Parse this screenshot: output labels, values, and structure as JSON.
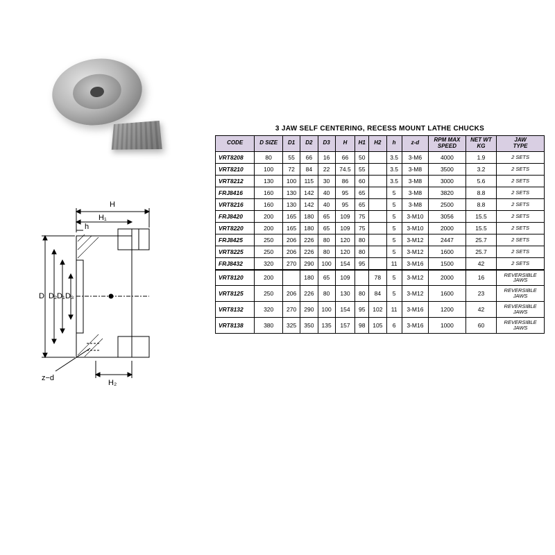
{
  "title": "3 JAW SELF CENTERING, RECESS MOUNT LATHE CHUCKS",
  "colors": {
    "header_bg": "#d9cfe3",
    "border": "#000000",
    "page_bg": "#ffffff"
  },
  "diagram_labels": {
    "H": "H",
    "H1": "H₁",
    "h": "h",
    "D": "D",
    "D1": "D₁",
    "D2": "D₂",
    "D3": "D₃",
    "zd": "z−d",
    "H2": "H₂"
  },
  "table": {
    "columns": [
      "CODE",
      "D SIZE",
      "D1",
      "D2",
      "D3",
      "H",
      "H1",
      "H2",
      "h",
      "z-d",
      "RPM MAX SPEED",
      "NET WT KG",
      "JAW TYPE"
    ],
    "rows": [
      {
        "code": "VRT8208",
        "dsize": "80",
        "d1": "55",
        "d2": "66",
        "d3": "16",
        "H": "66",
        "H1": "50",
        "H2": "",
        "h": "3.5",
        "zd": "3-M6",
        "rpm": "4000",
        "wt": "1.9",
        "jaw": "2 SETS",
        "sep": false
      },
      {
        "code": "VRT8210",
        "dsize": "100",
        "d1": "72",
        "d2": "84",
        "d3": "22",
        "H": "74.5",
        "H1": "55",
        "H2": "",
        "h": "3.5",
        "zd": "3-M8",
        "rpm": "3500",
        "wt": "3.2",
        "jaw": "2 SETS",
        "sep": false
      },
      {
        "code": "VRT8212",
        "dsize": "130",
        "d1": "100",
        "d2": "115",
        "d3": "30",
        "H": "86",
        "H1": "60",
        "H2": "",
        "h": "3.5",
        "zd": "3-M8",
        "rpm": "3000",
        "wt": "5.6",
        "jaw": "2 SETS",
        "sep": false
      },
      {
        "code": "FRJ8416",
        "dsize": "160",
        "d1": "130",
        "d2": "142",
        "d3": "40",
        "H": "95",
        "H1": "65",
        "H2": "",
        "h": "5",
        "zd": "3-M8",
        "rpm": "3820",
        "wt": "8.8",
        "jaw": "2 SETS",
        "sep": false
      },
      {
        "code": "VRT8216",
        "dsize": "160",
        "d1": "130",
        "d2": "142",
        "d3": "40",
        "H": "95",
        "H1": "65",
        "H2": "",
        "h": "5",
        "zd": "3-M8",
        "rpm": "2500",
        "wt": "8.8",
        "jaw": "2 SETS",
        "sep": false
      },
      {
        "code": "FRJ8420",
        "dsize": "200",
        "d1": "165",
        "d2": "180",
        "d3": "65",
        "H": "109",
        "H1": "75",
        "H2": "",
        "h": "5",
        "zd": "3-M10",
        "rpm": "3056",
        "wt": "15.5",
        "jaw": "2 SETS",
        "sep": false
      },
      {
        "code": "VRT8220",
        "dsize": "200",
        "d1": "165",
        "d2": "180",
        "d3": "65",
        "H": "109",
        "H1": "75",
        "H2": "",
        "h": "5",
        "zd": "3-M10",
        "rpm": "2000",
        "wt": "15.5",
        "jaw": "2 SETS",
        "sep": false
      },
      {
        "code": "FRJ8425",
        "dsize": "250",
        "d1": "206",
        "d2": "226",
        "d3": "80",
        "H": "120",
        "H1": "80",
        "H2": "",
        "h": "5",
        "zd": "3-M12",
        "rpm": "2447",
        "wt": "25.7",
        "jaw": "2 SETS",
        "sep": false
      },
      {
        "code": "VRT8225",
        "dsize": "250",
        "d1": "206",
        "d2": "226",
        "d3": "80",
        "H": "120",
        "H1": "80",
        "H2": "",
        "h": "5",
        "zd": "3-M12",
        "rpm": "1600",
        "wt": "25.7",
        "jaw": "2 SETS",
        "sep": false
      },
      {
        "code": "FRJ8432",
        "dsize": "320",
        "d1": "270",
        "d2": "290",
        "d3": "100",
        "H": "154",
        "H1": "95",
        "H2": "",
        "h": "11",
        "zd": "3-M16",
        "rpm": "1500",
        "wt": "42",
        "jaw": "2 SETS",
        "sep": false
      },
      {
        "code": "VRT8120",
        "dsize": "200",
        "d1": "",
        "d2": "180",
        "d3": "65",
        "H": "109",
        "H1": "",
        "H2": "78",
        "h": "5",
        "zd": "3-M12",
        "rpm": "2000",
        "wt": "16",
        "jaw": "REVERSIBLE JAWS",
        "sep": true
      },
      {
        "code": "VRT8125",
        "dsize": "250",
        "d1": "206",
        "d2": "226",
        "d3": "80",
        "H": "130",
        "H1": "80",
        "H2": "84",
        "h": "5",
        "zd": "3-M12",
        "rpm": "1600",
        "wt": "23",
        "jaw": "REVERSIBLE JAWS",
        "sep": false
      },
      {
        "code": "VRT8132",
        "dsize": "320",
        "d1": "270",
        "d2": "290",
        "d3": "100",
        "H": "154",
        "H1": "95",
        "H2": "102",
        "h": "11",
        "zd": "3-M16",
        "rpm": "1200",
        "wt": "42",
        "jaw": "REVERSIBLE JAWS",
        "sep": false
      },
      {
        "code": "VRT8138",
        "dsize": "380",
        "d1": "325",
        "d2": "350",
        "d3": "135",
        "H": "157",
        "H1": "98",
        "H2": "105",
        "h": "6",
        "zd": "3-M16",
        "rpm": "1000",
        "wt": "60",
        "jaw": "REVERSIBLE JAWS",
        "sep": false
      }
    ]
  }
}
